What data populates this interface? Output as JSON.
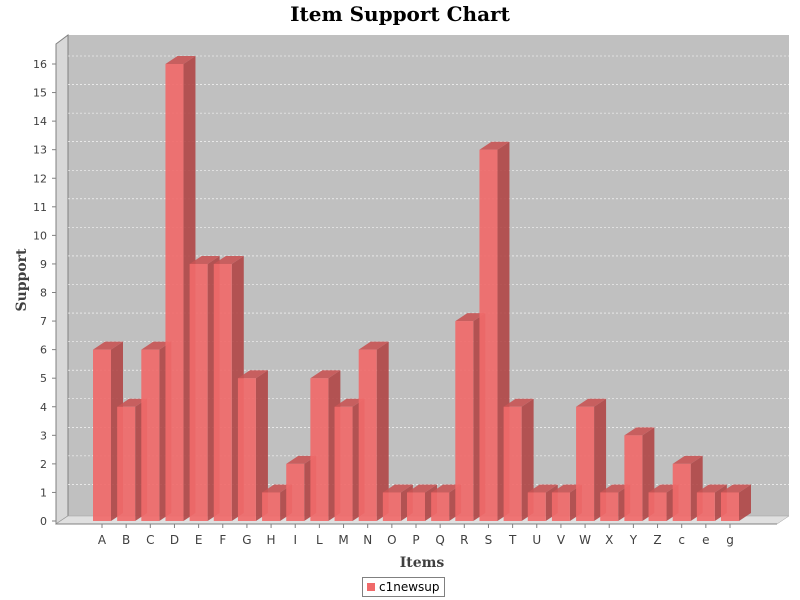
{
  "chart_data": {
    "type": "bar",
    "title": "Item Support Chart",
    "xlabel": "Items",
    "ylabel": "Support",
    "categories": [
      "A",
      "B",
      "C",
      "D",
      "E",
      "F",
      "G",
      "H",
      "I",
      "L",
      "M",
      "N",
      "O",
      "P",
      "Q",
      "R",
      "S",
      "T",
      "U",
      "V",
      "W",
      "X",
      "Y",
      "Z",
      "c",
      "e",
      "g"
    ],
    "series": [
      {
        "name": "c1newsup",
        "values": [
          6,
          4,
          6,
          16,
          9,
          9,
          5,
          1,
          2,
          5,
          4,
          6,
          1,
          1,
          1,
          7,
          13,
          4,
          1,
          1,
          4,
          1,
          3,
          1,
          2,
          1,
          1
        ]
      }
    ],
    "ylim": [
      0,
      16
    ],
    "yticks": [
      "0",
      "1",
      "2",
      "3",
      "4",
      "5",
      "6",
      "7",
      "8",
      "9",
      "10",
      "11",
      "12",
      "13",
      "14",
      "15",
      "16"
    ],
    "grid": true,
    "legend_position": "bottom",
    "colors": {
      "bar": "#f06a6a",
      "bar_side": "#b04646",
      "bar_top": "#c85454",
      "plot_bg": "#c0c0c0"
    }
  }
}
